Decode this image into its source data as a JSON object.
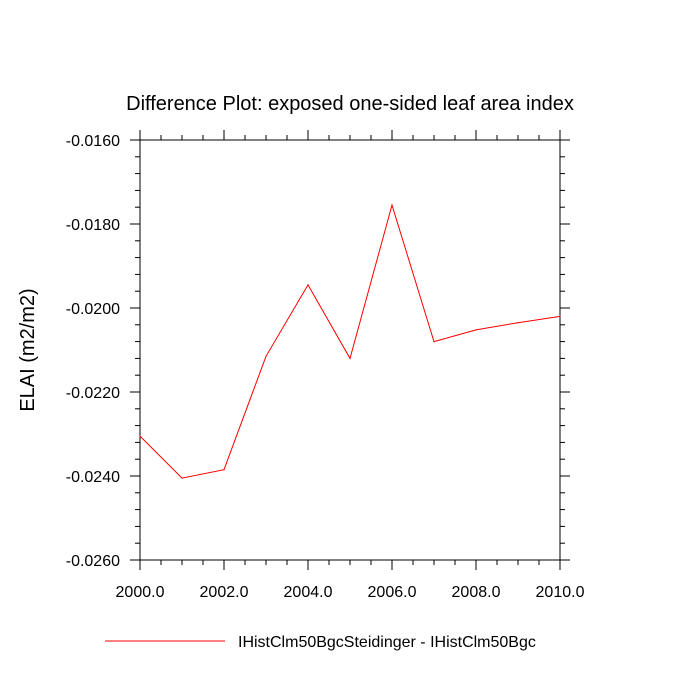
{
  "chart_data": {
    "type": "line",
    "title": "Difference Plot: exposed one-sided leaf area index",
    "xlabel": "",
    "ylabel": "ELAI  (m2/m2)",
    "xlim": [
      2000.0,
      2010.0
    ],
    "ylim": [
      -0.026,
      -0.016
    ],
    "x_ticks": [
      2000.0,
      2002.0,
      2004.0,
      2006.0,
      2008.0,
      2010.0
    ],
    "x_tick_labels": [
      "2000.0",
      "2002.0",
      "2004.0",
      "2006.0",
      "2008.0",
      "2010.0"
    ],
    "y_ticks": [
      -0.016,
      -0.018,
      -0.02,
      -0.022,
      -0.024,
      -0.026
    ],
    "y_tick_labels": [
      "-0.0160",
      "-0.0180",
      "-0.0200",
      "-0.0220",
      "-0.0240",
      "-0.0260"
    ],
    "grid": false,
    "legend_position": "bottom",
    "x": [
      2000,
      2001,
      2002,
      2003,
      2004,
      2005,
      2006,
      2007,
      2008,
      2009,
      2010
    ],
    "series": [
      {
        "name": "IHistClm50BgcSteidinger - IHistClm50Bgc",
        "color": "#ff0000",
        "values": [
          -0.02305,
          -0.02405,
          -0.02385,
          -0.02115,
          -0.01945,
          -0.0212,
          -0.01755,
          -0.0208,
          -0.02052,
          -0.02035,
          -0.0202
        ]
      }
    ]
  }
}
